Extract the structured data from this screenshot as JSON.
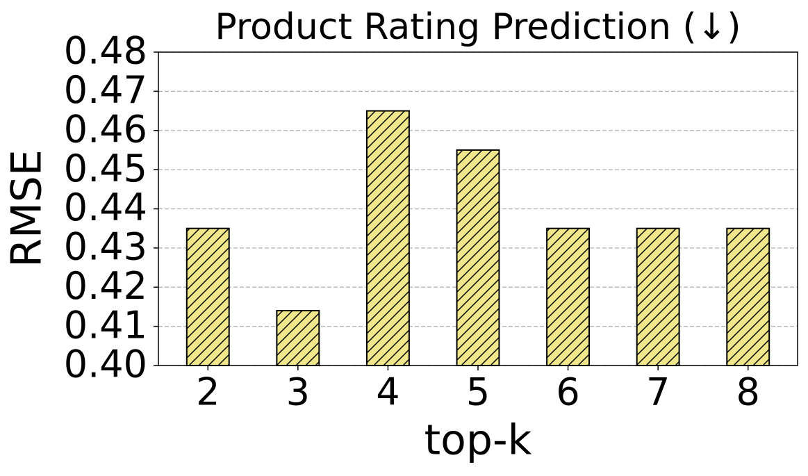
{
  "chart_data": {
    "type": "bar",
    "title": "Product Rating Prediction (↓)",
    "x_label": "top-k",
    "y_label": "RMSE",
    "categories": [
      "2",
      "3",
      "4",
      "5",
      "6",
      "7",
      "8"
    ],
    "values": [
      0.435,
      0.414,
      0.465,
      0.455,
      0.435,
      0.435,
      0.435
    ],
    "color": "#f0e68c",
    "hatch": "///",
    "ylim": [
      0.4,
      0.48
    ],
    "yticks": [
      {
        "value": 0.4,
        "label": "0.40"
      },
      0.41,
      0.42,
      0.43,
      0.44,
      0.45,
      0.46,
      0.47,
      0.48
    ],
    "grid": true
  }
}
